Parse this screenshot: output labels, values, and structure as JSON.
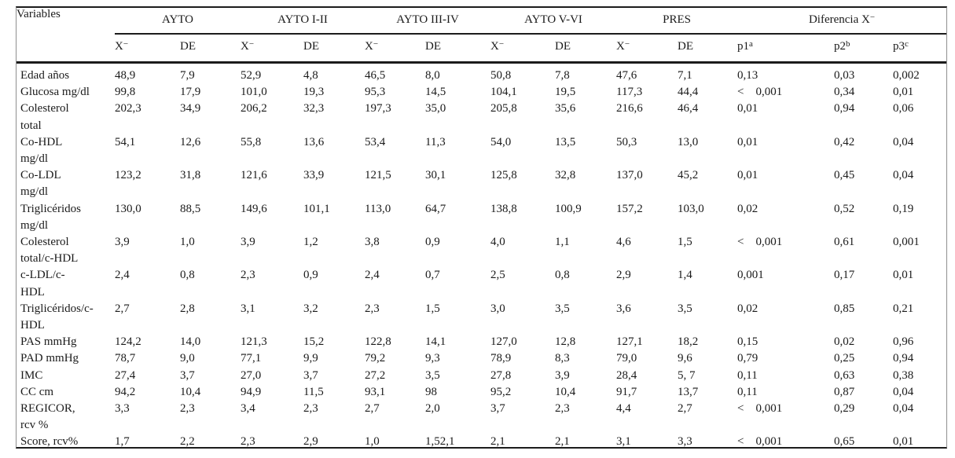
{
  "table": {
    "corner_header": "Variables",
    "mean_symbol": {
      "base": "X",
      "sup": "−"
    },
    "sd_label": "DE",
    "groups": [
      {
        "label": "AYTO",
        "sup": ""
      },
      {
        "label": "AYTO I-II",
        "sup": ""
      },
      {
        "label": "AYTO III-IV",
        "sup": ""
      },
      {
        "label": "AYTO V-VI",
        "sup": ""
      },
      {
        "label": "PRES",
        "sup": ""
      },
      {
        "label": "Diferencia X",
        "sup": "−"
      }
    ],
    "p_headers": [
      {
        "base": "p1",
        "sup": "a"
      },
      {
        "base": "p2",
        "sup": "b"
      },
      {
        "base": "p3",
        "sup": "c"
      }
    ],
    "rows": [
      {
        "label": "Edad años",
        "values": [
          "48,9",
          "7,9",
          "52,9",
          "4,8",
          "46,5",
          "8,0",
          "50,8",
          "7,8",
          "47,6",
          "7,1",
          "0,13",
          "0,03",
          "0,002"
        ]
      },
      {
        "label": "Glucosa mg/dl",
        "values": [
          "99,8",
          "17,9",
          "101,0",
          "19,3",
          "95,3",
          "14,5",
          "104,1",
          "19,5",
          "117,3",
          "44,4",
          "<    0,001",
          "0,34",
          "0,01"
        ]
      },
      {
        "label": "Colesterol\ntotal",
        "values": [
          "202,3",
          "34,9",
          "206,2",
          "32,3",
          "197,3",
          "35,0",
          "205,8",
          "35,6",
          "216,6",
          "46,4",
          "0,01",
          "0,94",
          "0,06"
        ]
      },
      {
        "label": "Co-HDL\nmg/dl",
        "values": [
          "54,1",
          "12,6",
          "55,8",
          "13,6",
          "53,4",
          "11,3",
          "54,0",
          "13,5",
          "50,3",
          "13,0",
          "0,01",
          "0,42",
          "0,04"
        ]
      },
      {
        "label": "Co-LDL\nmg/dl",
        "values": [
          "123,2",
          "31,8",
          "121,6",
          "33,9",
          "121,5",
          "30,1",
          "125,8",
          "32,8",
          "137,0",
          "45,2",
          "0,01",
          "0,45",
          "0,04"
        ]
      },
      {
        "label": "Triglicéridos\nmg/dl",
        "values": [
          "130,0",
          "88,5",
          "149,6",
          "101,1",
          "113,0",
          "64,7",
          "138,8",
          "100,9",
          "157,2",
          "103,0",
          "0,02",
          "0,52",
          "0,19"
        ]
      },
      {
        "label": "Colesterol\ntotal/c-HDL",
        "values": [
          "3,9",
          "1,0",
          "3,9",
          "1,2",
          "3,8",
          "0,9",
          "4,0",
          "1,1",
          "4,6",
          "1,5",
          "<    0,001",
          "0,61",
          "0,001"
        ]
      },
      {
        "label": "c-LDL/c-\nHDL",
        "values": [
          "2,4",
          "0,8",
          "2,3",
          "0,9",
          "2,4",
          "0,7",
          "2,5",
          "0,8",
          "2,9",
          "1,4",
          "0,001",
          "0,17",
          "0,01"
        ]
      },
      {
        "label": "Triglicéridos/c-\nHDL",
        "values": [
          "2,7",
          "2,8",
          "3,1",
          "3,2",
          "2,3",
          "1,5",
          "3,0",
          "3,5",
          "3,6",
          "3,5",
          "0,02",
          "0,85",
          "0,21"
        ]
      },
      {
        "label": "PAS mmHg",
        "values": [
          "124,2",
          "14,0",
          "121,3",
          "15,2",
          "122,8",
          "14,1",
          "127,0",
          "12,8",
          "127,1",
          "18,2",
          "0,15",
          "0,02",
          "0,96"
        ]
      },
      {
        "label": "PAD mmHg",
        "values": [
          "78,7",
          "9,0",
          "77,1",
          "9,9",
          "79,2",
          "9,3",
          "78,9",
          "8,3",
          "79,0",
          "9,6",
          "0,79",
          "0,25",
          "0,94"
        ]
      },
      {
        "label": "IMC",
        "values": [
          "27,4",
          "3,7",
          "27,0",
          "3,7",
          "27,2",
          "3,5",
          "27,8",
          "3,9",
          "28,4",
          "5, 7",
          "0,11",
          "0,63",
          "0,38"
        ]
      },
      {
        "label": "CC cm",
        "values": [
          "94,2",
          "10,4",
          "94,9",
          "11,5",
          "93,1",
          "98",
          "95,2",
          "10,4",
          "91,7",
          "13,7",
          "0,11",
          "0,87",
          "0,04"
        ]
      },
      {
        "label": "REGICOR,\nrcv %",
        "values": [
          "3,3",
          "2,3",
          "3,4",
          "2,3",
          "2,7",
          "2,0",
          "3,7",
          "2,3",
          "4,4",
          "2,7",
          "<    0,001",
          "0,29",
          "0,04"
        ]
      },
      {
        "label": "Score, rcv%",
        "values": [
          "1,7",
          "2,2",
          "2,3",
          "2,9",
          "1,0",
          "1,52,1",
          "2,1",
          "2,1",
          "3,1",
          "3,3",
          "<    0,001",
          "0,65",
          "0,01"
        ]
      }
    ]
  }
}
